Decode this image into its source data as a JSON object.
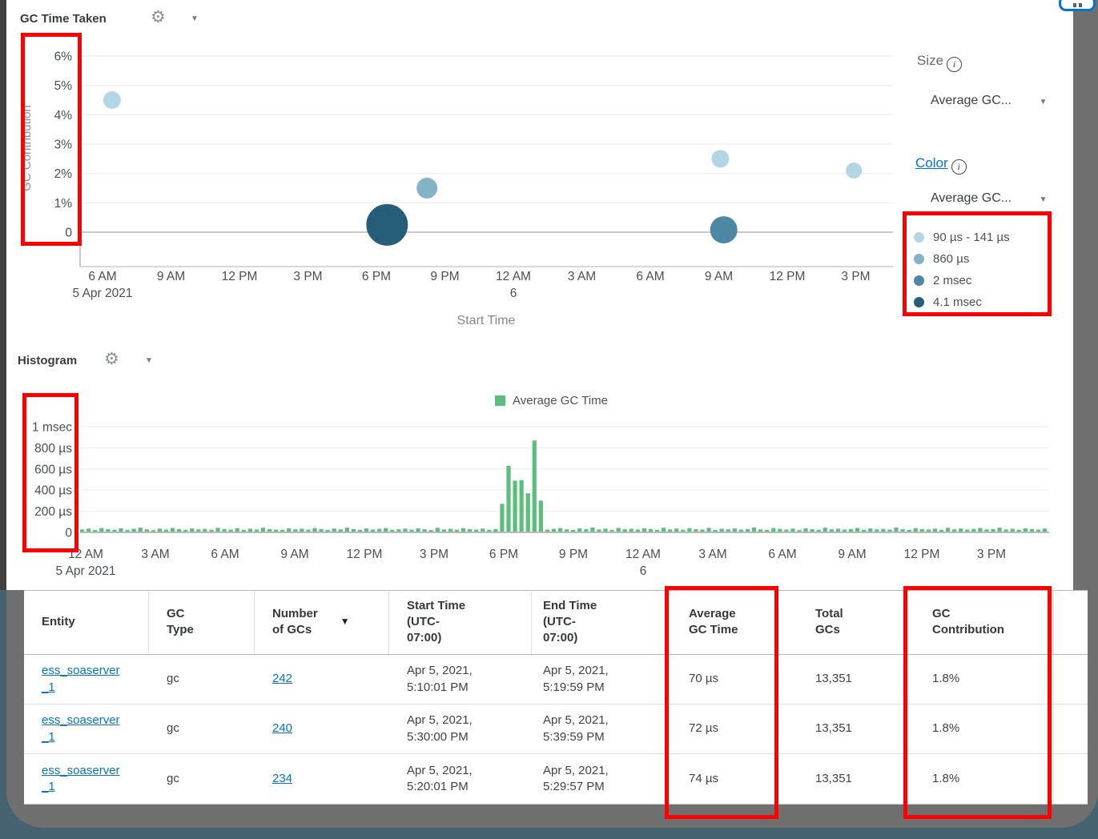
{
  "gc_time_taken_section": {
    "title": "GC Time Taken",
    "size_label": "Size",
    "size_info_icon": "i",
    "size_value": "Average GC...",
    "color_label": "Color",
    "color_info_icon": "i",
    "color_value": "Average GC...",
    "color_legend": [
      {
        "label": "90 µs - 141 µs",
        "color": "#b3d6e4"
      },
      {
        "label": "860 µs",
        "color": "#84b3c8"
      },
      {
        "label": "2 msec",
        "color": "#4c87a3"
      },
      {
        "label": "4.1 msec",
        "color": "#265d78"
      }
    ]
  },
  "histogram_section": {
    "title": "Histogram",
    "legend_label": "Average GC Time",
    "legend_color": "#5cbe7d"
  },
  "chart_data": [
    {
      "type": "scatter",
      "title": "GC Time Taken",
      "xlabel": "Start Time",
      "ylabel": "GC Contribution",
      "ylim": [
        0,
        6
      ],
      "y_unit": "%",
      "y_ticks": [
        "6%",
        "5%",
        "4%",
        "3%",
        "2%",
        "1%",
        "0"
      ],
      "x_ticks": [
        {
          "label": "6 AM",
          "sub": "5 Apr 2021"
        },
        {
          "label": "9 AM"
        },
        {
          "label": "12 PM"
        },
        {
          "label": "3 PM"
        },
        {
          "label": "6 PM"
        },
        {
          "label": "9 PM"
        },
        {
          "label": "12 AM",
          "sub": "6"
        },
        {
          "label": "3 AM"
        },
        {
          "label": "6 AM"
        },
        {
          "label": "9 AM"
        },
        {
          "label": "12 PM"
        },
        {
          "label": "3 PM"
        }
      ],
      "size_by": "Average GC Time",
      "color_by": "Average GC Time",
      "grid": true,
      "points": [
        {
          "start_time": "Apr 5 2021 ~6:20 AM",
          "gc_contribution_pct": 4.5,
          "avg_gc_time": "90 µs - 141 µs",
          "x_hours": 1.4,
          "radius_px": 11,
          "color": "#b3d6e4"
        },
        {
          "start_time": "Apr 5 2021 ~6:30 PM",
          "gc_contribution_pct": 0.25,
          "avg_gc_time": "4.1 msec",
          "x_hours": 13.45,
          "radius_px": 26,
          "color": "#265d78"
        },
        {
          "start_time": "Apr 5 2021 ~8:10 PM",
          "gc_contribution_pct": 1.5,
          "avg_gc_time": "860 µs",
          "x_hours": 15.2,
          "radius_px": 13,
          "color": "#84b3c8"
        },
        {
          "start_time": "Apr 6 2021 ~9:00 AM",
          "gc_contribution_pct": 2.5,
          "avg_gc_time": "90 µs - 141 µs",
          "x_hours": 28.05,
          "radius_px": 11,
          "color": "#b3d6e4"
        },
        {
          "start_time": "Apr 6 2021 ~9:10 AM",
          "gc_contribution_pct": 0.08,
          "avg_gc_time": "2 msec",
          "x_hours": 28.2,
          "radius_px": 17,
          "color": "#4c87a3"
        },
        {
          "start_time": "Apr 6 2021 ~2:50 PM",
          "gc_contribution_pct": 2.1,
          "avg_gc_time": "90 µs - 141 µs",
          "x_hours": 33.9,
          "radius_px": 10,
          "color": "#b3d6e4"
        }
      ],
      "layout_hints": {
        "first_tick_hour": 1,
        "tick_interval_hours": 3,
        "x_span_hours": 35.6,
        "legend_position": "right"
      }
    },
    {
      "type": "bar",
      "series_name": "Average GC Time",
      "bar_color": "#5cbe7d",
      "ylim_us": [
        0,
        1000
      ],
      "y_ticks": [
        "1 msec",
        "800 µs",
        "600 µs",
        "400 µs",
        "200 µs",
        "0"
      ],
      "x_ticks": [
        {
          "label": "12 AM",
          "sub": "5 Apr 2021"
        },
        {
          "label": "3 AM"
        },
        {
          "label": "6 AM"
        },
        {
          "label": "9 AM"
        },
        {
          "label": "12 PM"
        },
        {
          "label": "3 PM"
        },
        {
          "label": "6 PM"
        },
        {
          "label": "9 PM"
        },
        {
          "label": "12 AM",
          "sub": "6"
        },
        {
          "label": "3 AM"
        },
        {
          "label": "6 AM"
        },
        {
          "label": "9 AM"
        },
        {
          "label": "12 PM"
        },
        {
          "label": "3 PM"
        }
      ],
      "grid": true,
      "legend_position": "top",
      "values_us": [
        28,
        36,
        22,
        41,
        30,
        25,
        38,
        24,
        34,
        45,
        29,
        21,
        36,
        26,
        42,
        31,
        23,
        37,
        28,
        33,
        25,
        43,
        30,
        26,
        39,
        23,
        35,
        27,
        44,
        31,
        26,
        24,
        38,
        29,
        35,
        26,
        41,
        32,
        23,
        36,
        28,
        45,
        30,
        24,
        37,
        27,
        34,
        41,
        24,
        29,
        36,
        26,
        38,
        30,
        22,
        43,
        28,
        34,
        25,
        40,
        31,
        27,
        36,
        24,
        31,
        270,
        630,
        490,
        495,
        370,
        870,
        300,
        26,
        33,
        41,
        28,
        24,
        37,
        30,
        46,
        27,
        35,
        23,
        42,
        29,
        34,
        26,
        38,
        31,
        24,
        44,
        28,
        36,
        25,
        40,
        30,
        27,
        43,
        23,
        34,
        29,
        37,
        26,
        31,
        46,
        28,
        24,
        41,
        33,
        27,
        36,
        22,
        38,
        30,
        25,
        44,
        29,
        35,
        27,
        32,
        42,
        24,
        37,
        28,
        33,
        26,
        46,
        30,
        23,
        40,
        31,
        27,
        35,
        24,
        43,
        29,
        36,
        26,
        33,
        41,
        28,
        31,
        45,
        27,
        34,
        24,
        39,
        30,
        26,
        36
      ]
    }
  ],
  "table": {
    "headers": {
      "entity": "Entity",
      "gc_type": "GC\nType",
      "num_gcs": "Number\nof GCs",
      "start_time": "Start Time\n(UTC-\n07:00)",
      "end_time": "End Time\n(UTC-\n07:00)",
      "avg_gc_time": "Average\nGC Time",
      "total_gcs": "Total\nGCs",
      "gc_contribution": "GC\nContribution"
    },
    "sort_icon": "sort-desc",
    "rows": [
      {
        "entity": "ess_soaserver_1",
        "gc_type": "gc",
        "num_gcs": "242",
        "start": "Apr 5, 2021, 5:10:01 PM",
        "end": "Apr 5, 2021, 5:19:59 PM",
        "avg": "70 µs",
        "total": "13,351",
        "contrib": "1.8%"
      },
      {
        "entity": "ess_soaserver_1",
        "gc_type": "gc",
        "num_gcs": "240",
        "start": "Apr 5, 2021, 5:30:00 PM",
        "end": "Apr 5, 2021, 5:39:59 PM",
        "avg": "72 µs",
        "total": "13,351",
        "contrib": "1.8%"
      },
      {
        "entity": "ess_soaserver_1",
        "gc_type": "gc",
        "num_gcs": "234",
        "start": "Apr 5, 2021, 5:20:01 PM",
        "end": "Apr 5, 2021, 5:29:57 PM",
        "avg": "74 µs",
        "total": "13,351",
        "contrib": "1.8%"
      }
    ]
  },
  "annotations": {
    "highlight_color": "#fe0000",
    "boxes": [
      "scatter-y-axis",
      "color-legend",
      "histogram-y-axis",
      "avg-gc-time-column",
      "gc-contribution-column"
    ]
  },
  "icons": {
    "gear": "⚙",
    "caret_down": "▼",
    "sort_desc": "▼"
  }
}
